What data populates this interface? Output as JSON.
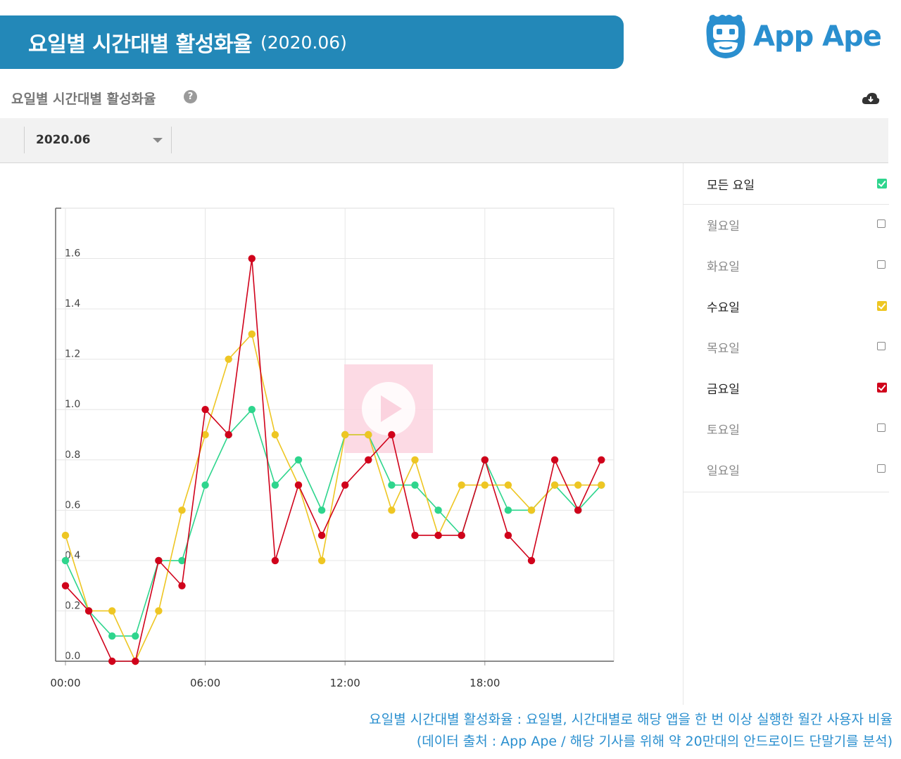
{
  "banner": {
    "title": "요일별 시간대별 활성화율",
    "subtitle": "(2020.06)"
  },
  "brand": {
    "name": "App Ape",
    "color": "#2a8fcf"
  },
  "section": {
    "title": "요일별 시간대별 활성화율",
    "help_icon": "question-icon",
    "download_icon": "cloud-download-icon"
  },
  "filter": {
    "month": "2020.06"
  },
  "legend": [
    {
      "label": "모든 요일",
      "checked": true,
      "color": "#2ed58d"
    },
    {
      "label": "월요일",
      "checked": false
    },
    {
      "label": "화요일",
      "checked": false
    },
    {
      "label": "수요일",
      "checked": true,
      "color": "#eec623"
    },
    {
      "label": "목요일",
      "checked": false
    },
    {
      "label": "금요일",
      "checked": true,
      "color": "#d0021b"
    },
    {
      "label": "토요일",
      "checked": false
    },
    {
      "label": "일요일",
      "checked": false
    }
  ],
  "chart_data": {
    "type": "line",
    "x": [
      0,
      1,
      2,
      3,
      4,
      5,
      6,
      7,
      8,
      9,
      10,
      11,
      12,
      13,
      14,
      15,
      16,
      17,
      18,
      19,
      20,
      21,
      22,
      23
    ],
    "xticks": [
      "00:00",
      "06:00",
      "12:00",
      "18:00"
    ],
    "xtick_values": [
      0,
      6,
      12,
      18
    ],
    "yticks": [
      "0.0",
      "0.2",
      "0.4",
      "0.6",
      "0.8",
      "1.0",
      "1.2",
      "1.4",
      "1.6"
    ],
    "ylim": [
      0,
      1.8
    ],
    "grid": true,
    "series": [
      {
        "name": "모든 요일",
        "color": "#2ed58d",
        "values": [
          0.4,
          0.2,
          0.1,
          0.1,
          0.4,
          0.4,
          0.7,
          0.9,
          1.0,
          0.7,
          0.8,
          0.6,
          0.9,
          0.9,
          0.7,
          0.7,
          0.6,
          0.5,
          0.8,
          0.6,
          0.6,
          0.7,
          0.6,
          0.7
        ]
      },
      {
        "name": "수요일",
        "color": "#eec623",
        "values": [
          0.5,
          0.2,
          0.2,
          0.0,
          0.2,
          0.6,
          0.9,
          1.2,
          1.3,
          0.9,
          0.7,
          0.4,
          0.9,
          0.9,
          0.6,
          0.8,
          0.5,
          0.7,
          0.7,
          0.7,
          0.6,
          0.7,
          0.7,
          0.7
        ]
      },
      {
        "name": "금요일",
        "color": "#d0021b",
        "values": [
          0.3,
          0.2,
          0.0,
          0.0,
          0.4,
          0.3,
          1.0,
          0.9,
          1.6,
          0.4,
          0.7,
          0.5,
          0.7,
          0.8,
          0.9,
          0.5,
          0.5,
          0.5,
          0.8,
          0.5,
          0.4,
          0.8,
          0.6,
          0.8
        ]
      }
    ]
  },
  "caption": {
    "line1": "요일별 시간대별 활성화율 : 요일별, 시간대별로 해당 앱을 한 번 이상 실행한 월간 사용자 비율",
    "line2": "(데이터 출처 : App Ape / 해당 기사를 위해 약 20만대의 안드로이드 단말기를 분석)"
  }
}
